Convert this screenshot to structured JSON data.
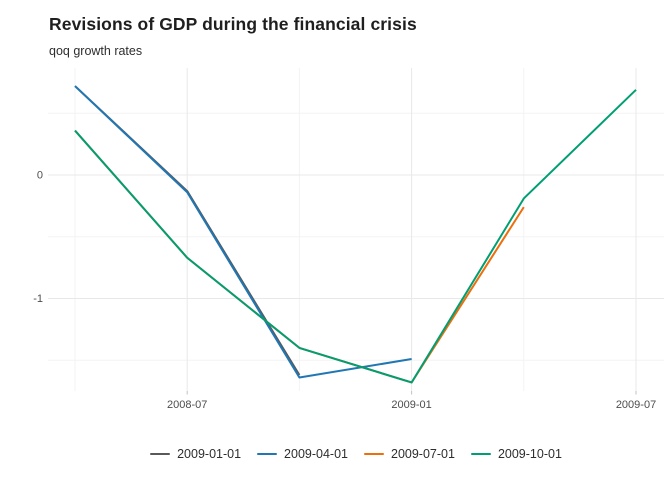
{
  "title": "Revisions of GDP during the financial crisis",
  "subtitle": "qoq growth rates",
  "colors": {
    "background": "#ffffff",
    "grid_major": "#e8e8e8",
    "grid_minor": "#f3f3f3",
    "axis_tick": "#c2c2c2",
    "axis_text": "#4d4d4d",
    "title_text": "#1f1f1f",
    "subtitle_text": "#2e2e2e",
    "legend_text": "#2e2e2e",
    "series_gray": "#595959",
    "series_blue": "#2077b4",
    "series_orange": "#ec6e0c",
    "series_green": "#009e73"
  },
  "chart_data": {
    "type": "line",
    "title": "Revisions of GDP during the financial crisis",
    "subtitle": "qoq growth rates",
    "xlabel": "",
    "ylabel": "",
    "x_dates": [
      "2008-04-01",
      "2008-07-01",
      "2008-10-01",
      "2009-01-01",
      "2009-04-01",
      "2009-07-01"
    ],
    "x_tick_labels": [
      {
        "label": "2008-07",
        "date": "2008-07-01"
      },
      {
        "label": "2009-01",
        "date": "2009-01-01"
      },
      {
        "label": "2009-07",
        "date": "2009-07-01"
      }
    ],
    "x_minor_dates": [
      "2008-04-01",
      "2008-10-01",
      "2009-04-01"
    ],
    "y_ticks": [
      {
        "label": "0",
        "value": 0
      },
      {
        "label": "-1",
        "value": -1
      }
    ],
    "y_minor": [
      0.5,
      -0.5,
      -1.5
    ],
    "ylim": [
      -1.75,
      0.87
    ],
    "grid": true,
    "legend_position": "bottom",
    "series": [
      {
        "name": "2009-01-01",
        "color": "#595959",
        "x": [
          "2008-04-01",
          "2008-07-01",
          "2008-10-01"
        ],
        "y": [
          0.72,
          -0.13,
          -1.62
        ]
      },
      {
        "name": "2009-04-01",
        "color": "#2077b4",
        "x": [
          "2008-04-01",
          "2008-07-01",
          "2008-10-01",
          "2009-01-01"
        ],
        "y": [
          0.72,
          -0.14,
          -1.64,
          -1.49
        ]
      },
      {
        "name": "2009-07-01",
        "color": "#ec6e0c",
        "x": [
          "2008-04-01",
          "2008-07-01",
          "2008-10-01",
          "2009-01-01",
          "2009-04-01"
        ],
        "y": [
          0.36,
          -0.67,
          -1.4,
          -1.68,
          -0.26
        ]
      },
      {
        "name": "2009-10-01",
        "color": "#009e73",
        "x": [
          "2008-04-01",
          "2008-07-01",
          "2008-10-01",
          "2009-01-01",
          "2009-04-01",
          "2009-07-01"
        ],
        "y": [
          0.36,
          -0.67,
          -1.4,
          -1.68,
          -0.19,
          0.69
        ]
      }
    ]
  }
}
